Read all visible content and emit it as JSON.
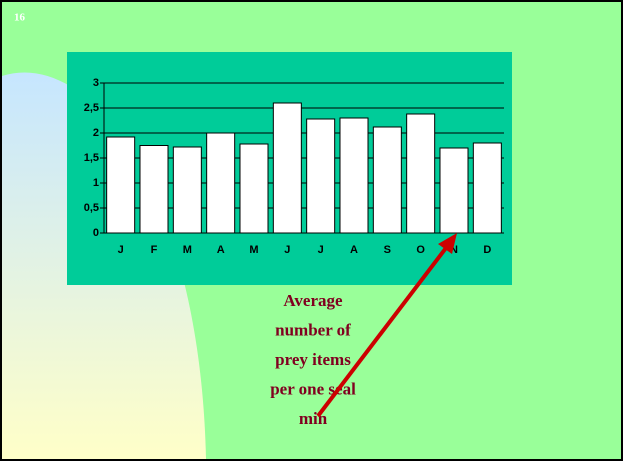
{
  "slide": {
    "number": "16"
  },
  "chart_data": {
    "type": "bar",
    "categories": [
      "J",
      "F",
      "M",
      "A",
      "M",
      "J",
      "J",
      "A",
      "S",
      "O",
      "N",
      "D"
    ],
    "values": [
      1.92,
      1.75,
      1.72,
      2.0,
      1.78,
      2.6,
      2.28,
      2.3,
      2.12,
      2.38,
      1.7,
      1.8
    ],
    "color": "#ffffff",
    "ylim": [
      0,
      3
    ],
    "yticks": [
      0,
      {
        "value": 0.5,
        "label": "0,5"
      },
      1,
      {
        "value": 1.5,
        "label": "1,5"
      },
      2,
      {
        "value": 2.5,
        "label": "2,5"
      },
      3
    ],
    "grid": true,
    "annotation": [
      "Average",
      "number of",
      "prey items",
      "per one seal",
      "min"
    ]
  }
}
